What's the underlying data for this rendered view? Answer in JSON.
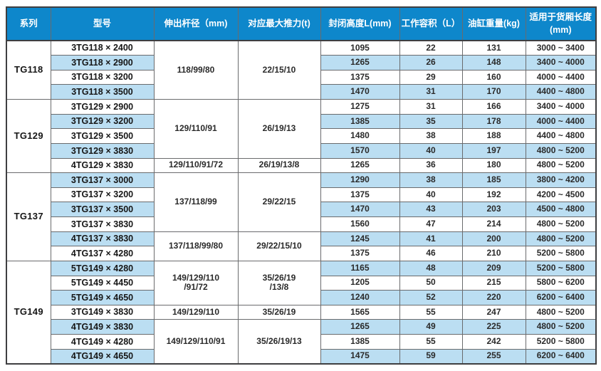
{
  "colors": {
    "header_bg": "#0e87cb",
    "stripe_bg": "#bbdef2",
    "border": "#6a6b6d",
    "outer_border": "#3f3f41",
    "header_text": "#ffffff",
    "cell_text": "#2a2a2a"
  },
  "chart_data": {
    "type": "table",
    "title": "",
    "note": "telescopic cylinder specification table"
  },
  "table": {
    "columns": [
      {
        "label": "系列"
      },
      {
        "label": "型号"
      },
      {
        "label": "伸出杆径（mm)"
      },
      {
        "label": "对应最大推力(t)"
      },
      {
        "label": "封闭高度L(mm)"
      },
      {
        "label": "工作容积（L）"
      },
      {
        "label": "油缸重量(kg)"
      },
      {
        "label": "适用于货厢长度\n(mm)"
      }
    ],
    "groups": [
      {
        "series": "TG118",
        "spans": [
          {
            "rows": 4,
            "rod": "118/99/80",
            "thrust": "22/15/10"
          }
        ],
        "rows": [
          {
            "model": "3TG118 × 2400",
            "height": "1095",
            "volume": "22",
            "weight": "131",
            "range": "3000 ~ 3400"
          },
          {
            "model": "3TG118 × 2900",
            "height": "1265",
            "volume": "26",
            "weight": "148",
            "range": "3400 ~ 4000"
          },
          {
            "model": "3TG118 × 3200",
            "height": "1375",
            "volume": "29",
            "weight": "160",
            "range": "4000 ~ 4400"
          },
          {
            "model": "3TG118 × 3500",
            "height": "1470",
            "volume": "31",
            "weight": "170",
            "range": "4400 ~ 4800"
          }
        ]
      },
      {
        "series": "TG129",
        "spans": [
          {
            "rows": 4,
            "rod": "129/110/91",
            "thrust": "26/19/13"
          },
          {
            "rows": 1,
            "rod": "129/110/91/72",
            "thrust": "26/19/13/8"
          }
        ],
        "rows": [
          {
            "model": "3TG129 × 2900",
            "height": "1275",
            "volume": "31",
            "weight": "166",
            "range": "3400 ~ 4000"
          },
          {
            "model": "3TG129 × 3200",
            "height": "1385",
            "volume": "35",
            "weight": "178",
            "range": "4000 ~ 4400"
          },
          {
            "model": "3TG129 × 3500",
            "height": "1480",
            "volume": "38",
            "weight": "188",
            "range": "4400 ~ 4800"
          },
          {
            "model": "3TG129 × 3830",
            "height": "1570",
            "volume": "40",
            "weight": "197",
            "range": "4800 ~ 5200"
          },
          {
            "model": "4TG129 × 3830",
            "height": "1265",
            "volume": "36",
            "weight": "180",
            "range": "4800 ~ 5200"
          }
        ]
      },
      {
        "series": "TG137",
        "spans": [
          {
            "rows": 4,
            "rod": "137/118/99",
            "thrust": "29/22/15"
          },
          {
            "rows": 2,
            "rod": "137/118/99/80",
            "thrust": "29/22/15/10"
          }
        ],
        "rows": [
          {
            "model": "3TG137 × 3000",
            "height": "1290",
            "volume": "38",
            "weight": "185",
            "range": "3800 ~ 4200"
          },
          {
            "model": "3TG137 × 3200",
            "height": "1375",
            "volume": "40",
            "weight": "192",
            "range": "4200 ~ 4500"
          },
          {
            "model": "3TG137 × 3500",
            "height": "1470",
            "volume": "43",
            "weight": "203",
            "range": "4500 ~ 4800"
          },
          {
            "model": "3TG137 × 3830",
            "height": "1560",
            "volume": "47",
            "weight": "214",
            "range": "4800 ~ 5200"
          },
          {
            "model": "4TG137 × 3830",
            "height": "1245",
            "volume": "41",
            "weight": "200",
            "range": "4800 ~ 5200"
          },
          {
            "model": "4TG137 × 4280",
            "height": "1375",
            "volume": "46",
            "weight": "210",
            "range": "5200 ~ 5800"
          }
        ]
      },
      {
        "series": "TG149",
        "spans": [
          {
            "rows": 3,
            "rod": "149/129/110\n/91/72",
            "thrust": "35/26/19\n/13/8"
          },
          {
            "rows": 1,
            "rod": "149/129/110",
            "thrust": "35/26/19"
          },
          {
            "rows": 3,
            "rod": "149/129/110/91",
            "thrust": "35/26/19/13"
          }
        ],
        "rows": [
          {
            "model": "5TG149 × 4280",
            "height": "1165",
            "volume": "48",
            "weight": "209",
            "range": "5200 ~ 5800"
          },
          {
            "model": "5TG149 × 4450",
            "height": "1205",
            "volume": "50",
            "weight": "215",
            "range": "5800 ~ 6200"
          },
          {
            "model": "5TG149 × 4650",
            "height": "1240",
            "volume": "52",
            "weight": "220",
            "range": "6200 ~ 6400"
          },
          {
            "model": "3TG149 × 3830",
            "height": "1565",
            "volume": "55",
            "weight": "247",
            "range": "4800 ~ 5200"
          },
          {
            "model": "4TG149 × 3830",
            "height": "1265",
            "volume": "49",
            "weight": "225",
            "range": "4800 ~ 5200"
          },
          {
            "model": "4TG149 × 4280",
            "height": "1385",
            "volume": "55",
            "weight": "242",
            "range": "5200 ~ 5800"
          },
          {
            "model": "4TG149 × 4650",
            "height": "1475",
            "volume": "59",
            "weight": "255",
            "range": "6200 ~ 6400"
          }
        ]
      }
    ]
  }
}
